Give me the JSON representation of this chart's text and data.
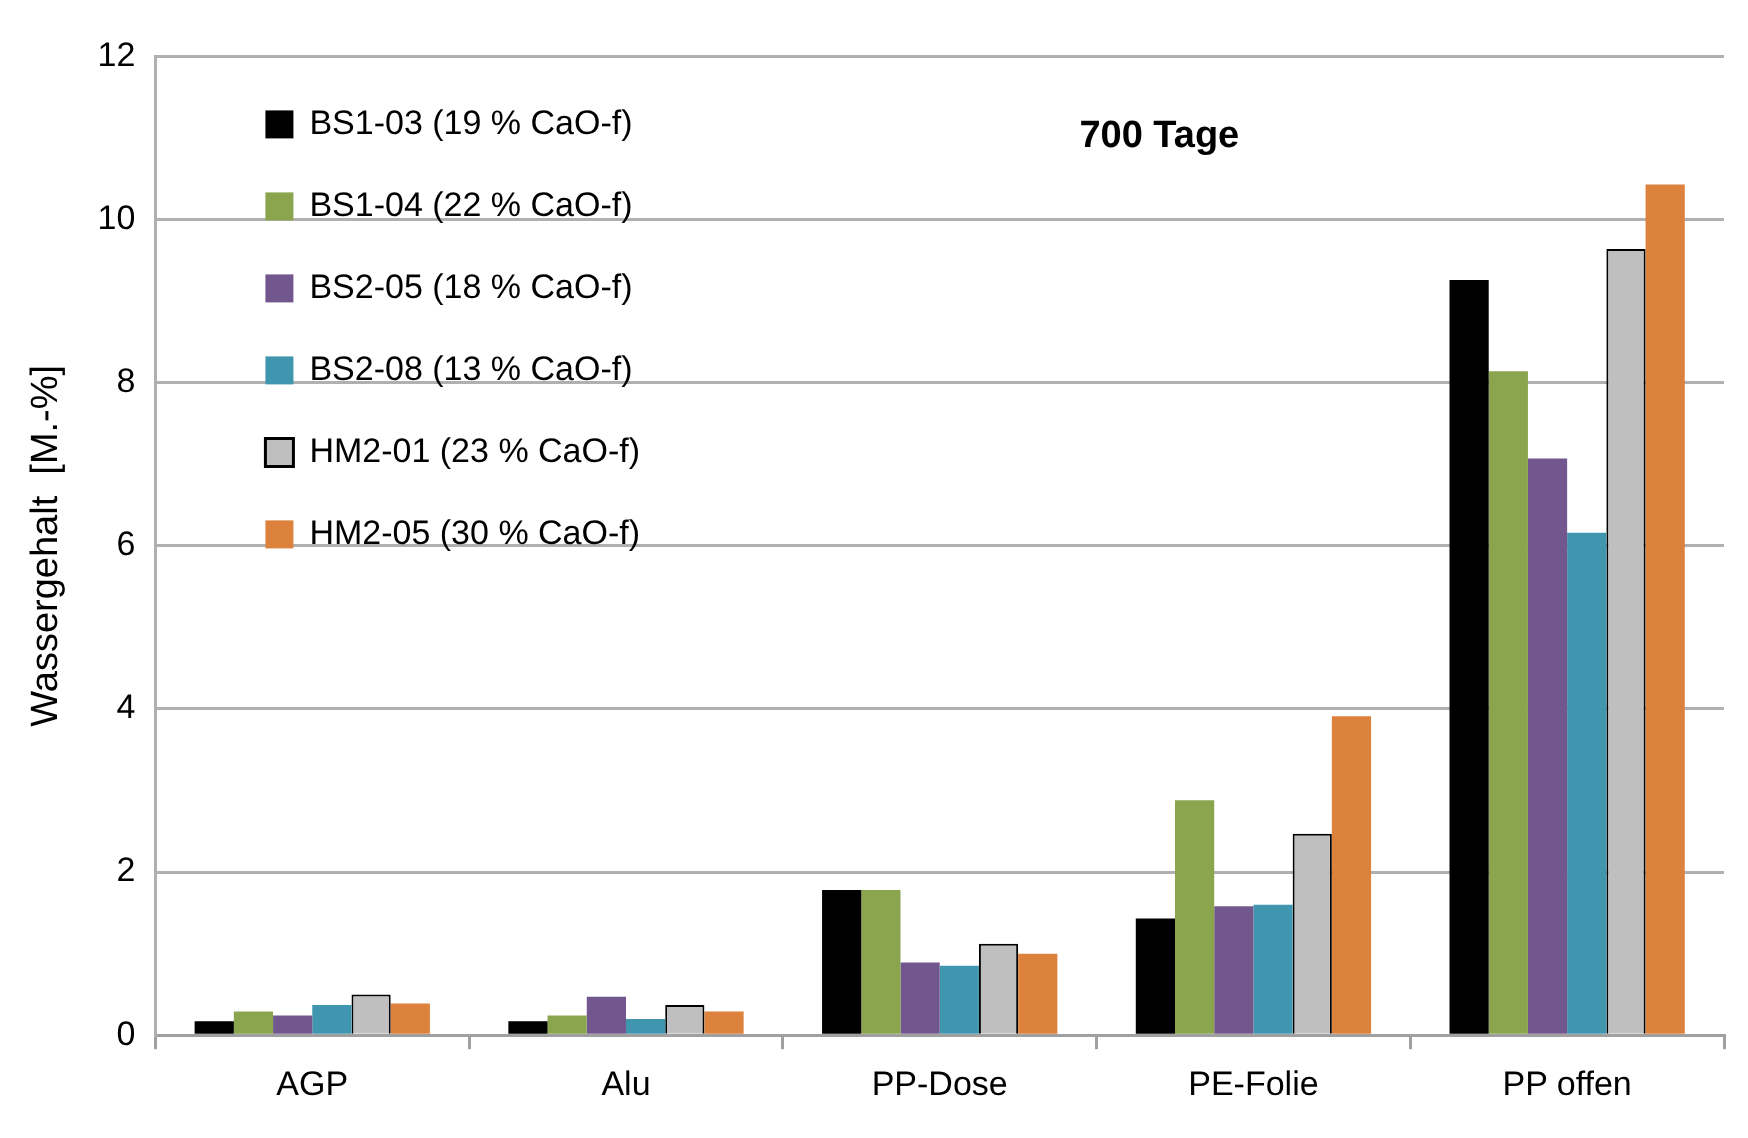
{
  "chart_data": {
    "type": "bar",
    "title": "700 Tage",
    "ylabel": "Wassergehalt  [M.-%]",
    "categories": [
      "AGP",
      "Alu",
      "PP-Dose",
      "PE-Folie",
      "PP offen"
    ],
    "series": [
      {
        "name": "BS1-03 (19 % CaO-f)",
        "color": "#000000",
        "values": [
          0.17,
          0.17,
          1.78,
          1.43,
          9.26
        ]
      },
      {
        "name": "BS1-04 (22 % CaO-f)",
        "color": "#8aa54e",
        "values": [
          0.29,
          0.24,
          1.78,
          2.88,
          8.14
        ]
      },
      {
        "name": "BS2-05 (18 % CaO-f)",
        "color": "#72578f",
        "values": [
          0.24,
          0.47,
          0.89,
          1.58,
          7.07
        ]
      },
      {
        "name": "BS2-08 (13 % CaO-f)",
        "color": "#4096ae",
        "values": [
          0.37,
          0.2,
          0.85,
          1.6,
          6.16
        ]
      },
      {
        "name": "HM2-01 (23 % CaO-f)",
        "color": "#bfbfbf",
        "values": [
          0.5,
          0.37,
          1.12,
          2.47,
          9.64
        ]
      },
      {
        "name": "HM2-05 (30 % CaO-f)",
        "color": "#dc823c",
        "values": [
          0.39,
          0.29,
          1.0,
          3.91,
          10.43
        ]
      }
    ],
    "ylim": [
      0,
      12
    ],
    "yticks": [
      0,
      2,
      4,
      6,
      8,
      10,
      12
    ],
    "grid": "y",
    "legend": "top left"
  }
}
